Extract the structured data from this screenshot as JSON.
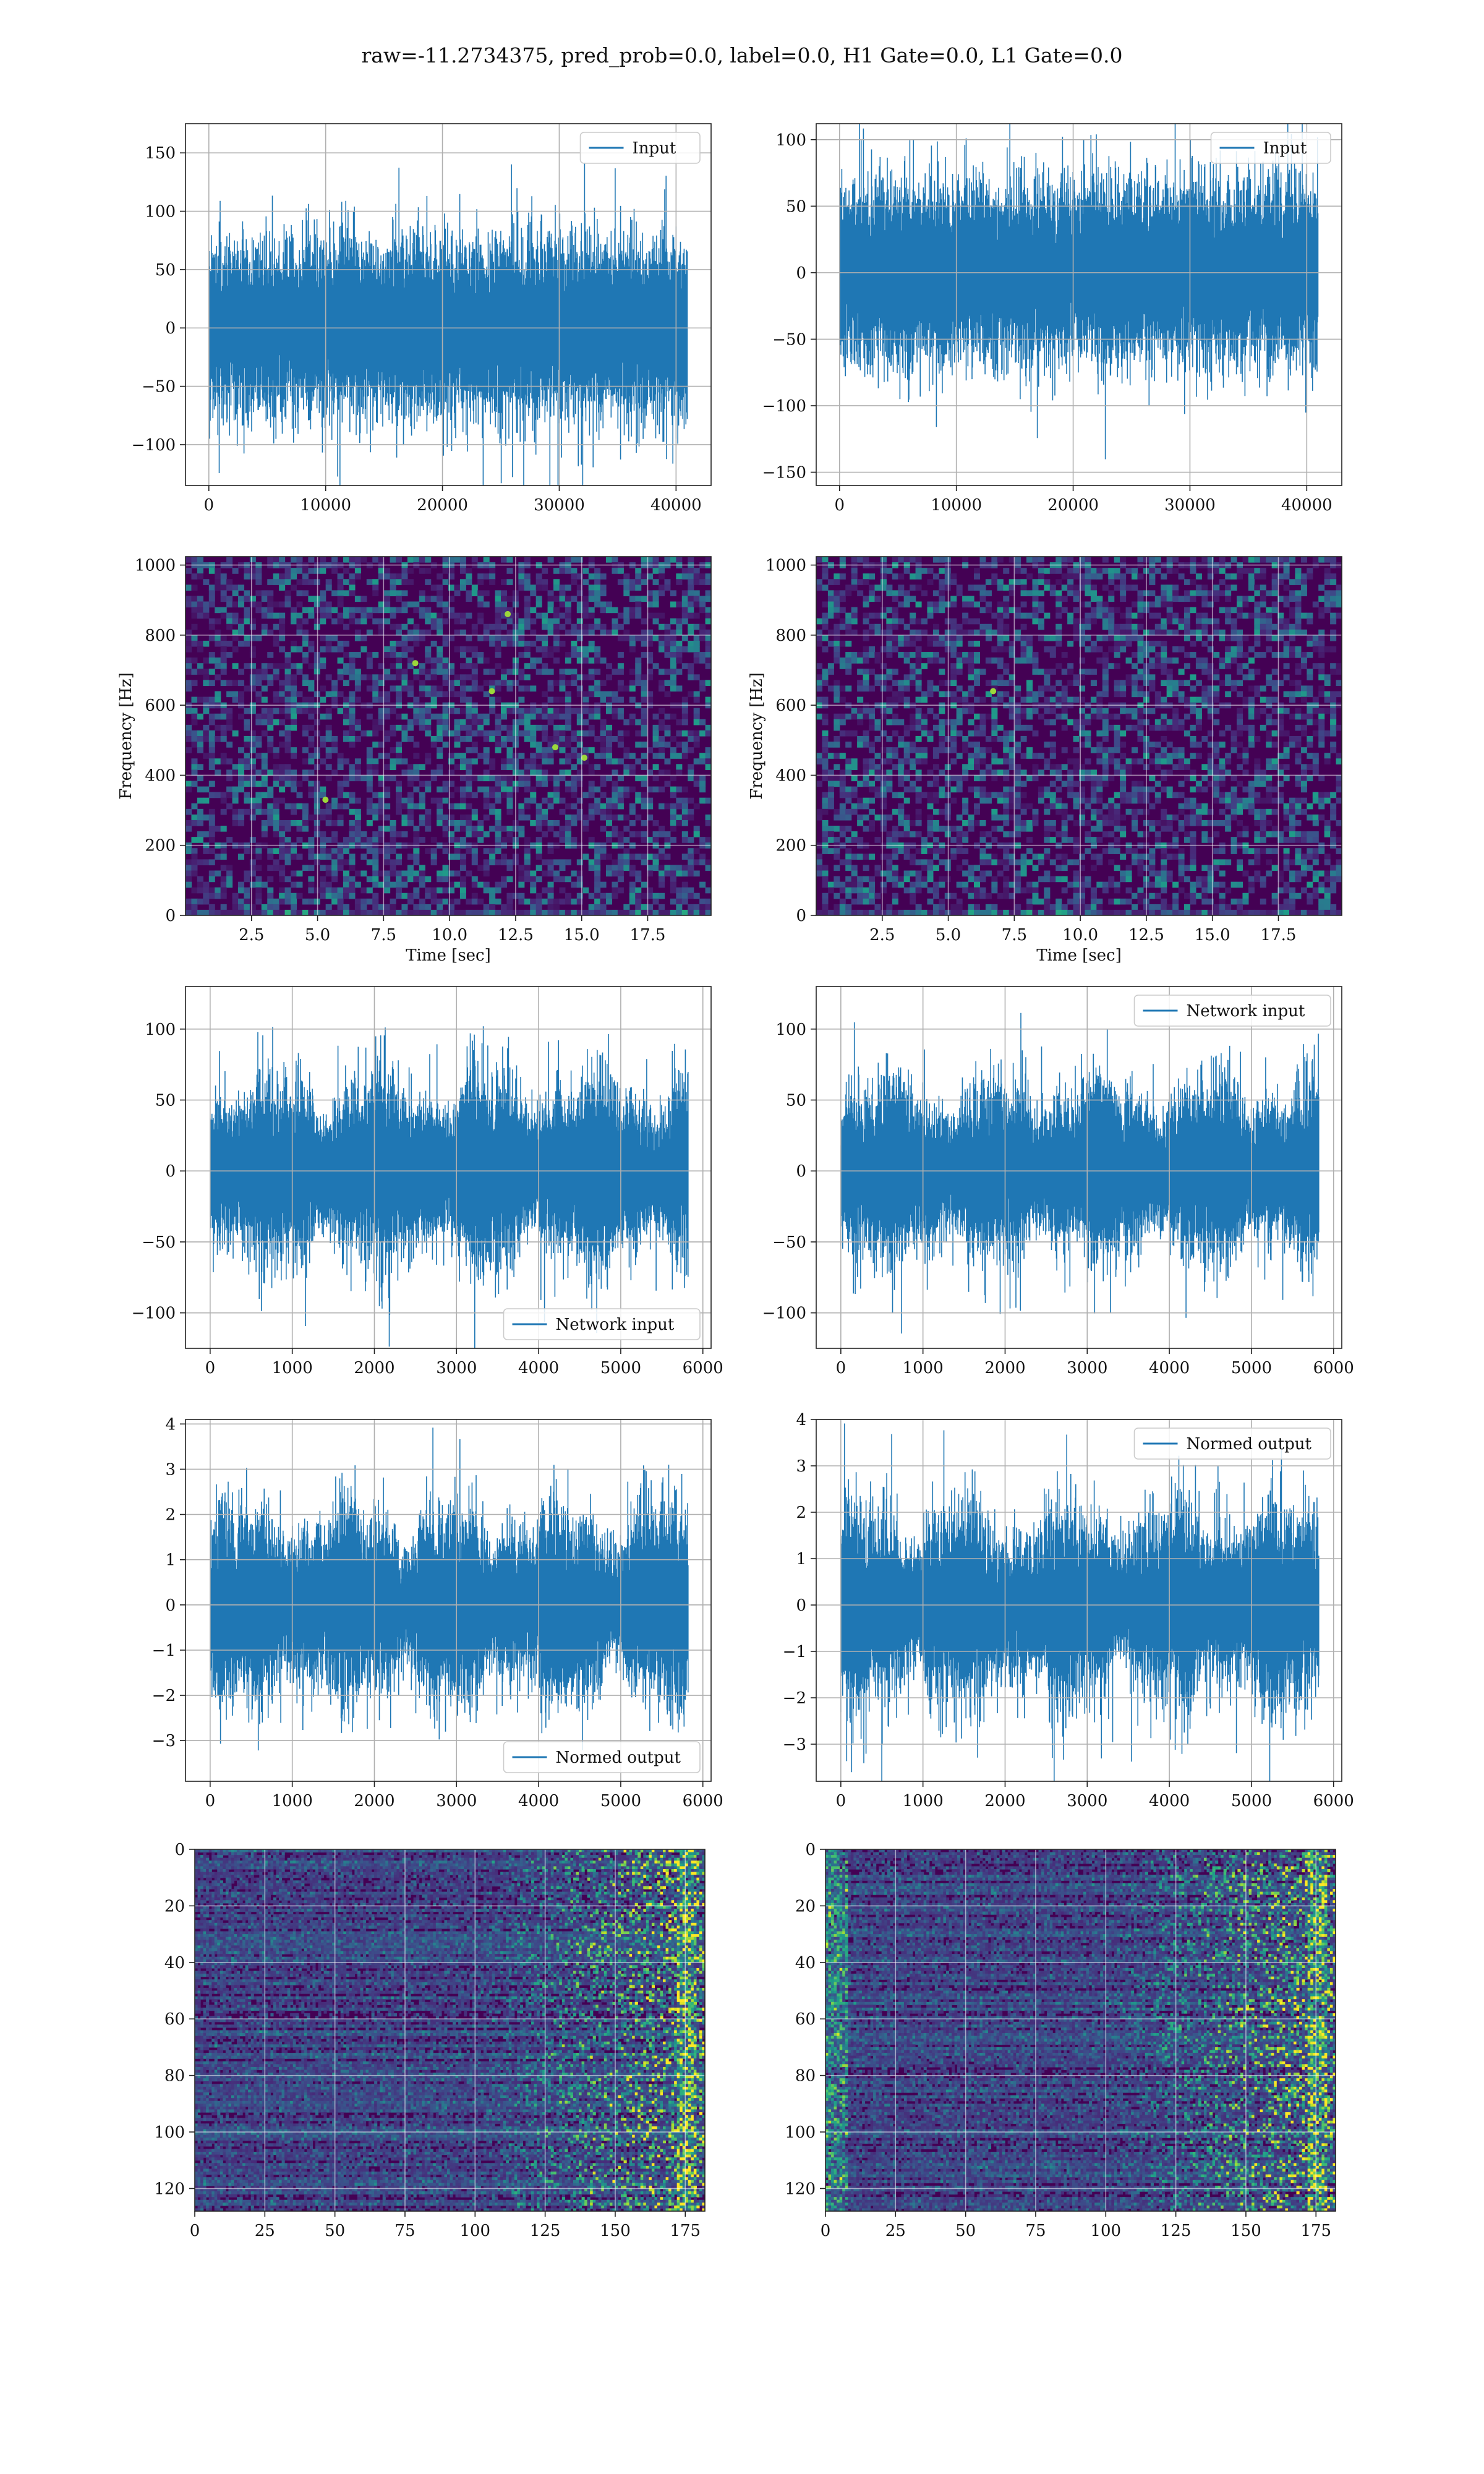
{
  "figure": {
    "suptitle": "raw=-11.2734375, pred_prob=0.0, label=0.0, H1 Gate=0.0, L1 Gate=0.0",
    "line_color": "#1f77b4"
  },
  "chart_data": [
    {
      "id": "h1-input",
      "type": "line",
      "series": [
        {
          "name": "Input",
          "n": 40960,
          "amp": 33,
          "envelope": "flat"
        }
      ],
      "legend": "top-right",
      "xlim": [
        -2000,
        43000
      ],
      "ylim": [
        -135,
        175
      ],
      "xticks": [
        0,
        10000,
        20000,
        30000,
        40000
      ],
      "xtick_labels": [
        "0",
        "10000",
        "20000",
        "30000",
        "40000"
      ],
      "yticks": [
        -100,
        -50,
        0,
        50,
        100,
        150
      ],
      "ytick_labels": [
        "−100",
        "−50",
        "0",
        "50",
        "100",
        "150"
      ],
      "grid": true
    },
    {
      "id": "l1-input",
      "type": "line",
      "series": [
        {
          "name": "Input",
          "n": 40960,
          "amp": 30,
          "envelope": "flat"
        }
      ],
      "legend": "top-right",
      "xlim": [
        -2000,
        43000
      ],
      "ylim": [
        -160,
        112
      ],
      "xticks": [
        0,
        10000,
        20000,
        30000,
        40000
      ],
      "xtick_labels": [
        "0",
        "10000",
        "20000",
        "30000",
        "40000"
      ],
      "yticks": [
        -150,
        -100,
        -50,
        0,
        50,
        100
      ],
      "ytick_labels": [
        "−150",
        "−100",
        "−50",
        "0",
        "50",
        "100"
      ],
      "grid": true
    },
    {
      "id": "h1-spectrogram",
      "type": "heatmap",
      "xlabel": "Time [sec]",
      "ylabel": "Frequency [Hz]",
      "xlim": [
        0,
        19.9
      ],
      "ylim": [
        0,
        1024
      ],
      "xticks": [
        2.5,
        5,
        7.5,
        10,
        12.5,
        15,
        17.5
      ],
      "xtick_labels": [
        "2.5",
        "5.0",
        "7.5",
        "10.0",
        "12.5",
        "15.0",
        "17.5"
      ],
      "yticks": [
        0,
        200,
        400,
        600,
        800,
        1000
      ],
      "ytick_labels": [
        "0",
        "200",
        "400",
        "600",
        "800",
        "1000"
      ],
      "grid": true,
      "colormap": "viridis"
    },
    {
      "id": "l1-spectrogram",
      "type": "heatmap",
      "xlabel": "Time [sec]",
      "ylabel": "Frequency [Hz]",
      "xlim": [
        0,
        19.9
      ],
      "ylim": [
        0,
        1024
      ],
      "xticks": [
        2.5,
        5,
        7.5,
        10,
        12.5,
        15,
        17.5
      ],
      "xtick_labels": [
        "2.5",
        "5.0",
        "7.5",
        "10.0",
        "12.5",
        "15.0",
        "17.5"
      ],
      "yticks": [
        0,
        200,
        400,
        600,
        800,
        1000
      ],
      "ytick_labels": [
        "0",
        "200",
        "400",
        "600",
        "800",
        "1000"
      ],
      "grid": true,
      "colormap": "viridis"
    },
    {
      "id": "h1-network-input",
      "type": "line",
      "series": [
        {
          "name": "Network input",
          "n": 5820,
          "amp": 25,
          "envelope": "modulated"
        }
      ],
      "legend": "bottom-right",
      "xlim": [
        -300,
        6100
      ],
      "ylim": [
        -125,
        130
      ],
      "xticks": [
        0,
        1000,
        2000,
        3000,
        4000,
        5000,
        6000
      ],
      "xtick_labels": [
        "0",
        "1000",
        "2000",
        "3000",
        "4000",
        "5000",
        "6000"
      ],
      "yticks": [
        -100,
        -50,
        0,
        50,
        100
      ],
      "ytick_labels": [
        "−100",
        "−50",
        "0",
        "50",
        "100"
      ],
      "grid": true
    },
    {
      "id": "l1-network-input",
      "type": "line",
      "series": [
        {
          "name": "Network input",
          "n": 5820,
          "amp": 24,
          "envelope": "modulated"
        }
      ],
      "legend": "top-right",
      "xlim": [
        -300,
        6100
      ],
      "ylim": [
        -125,
        130
      ],
      "xticks": [
        0,
        1000,
        2000,
        3000,
        4000,
        5000,
        6000
      ],
      "xtick_labels": [
        "0",
        "1000",
        "2000",
        "3000",
        "4000",
        "5000",
        "6000"
      ],
      "yticks": [
        -100,
        -50,
        0,
        50,
        100
      ],
      "ytick_labels": [
        "−100",
        "−50",
        "0",
        "50",
        "100"
      ],
      "grid": true
    },
    {
      "id": "h1-normed-output",
      "type": "line",
      "series": [
        {
          "name": "Normed output",
          "n": 5820,
          "amp": 0.82,
          "envelope": "modulated"
        }
      ],
      "legend": "bottom-right",
      "xlim": [
        -300,
        6100
      ],
      "ylim": [
        -3.9,
        4.1
      ],
      "xticks": [
        0,
        1000,
        2000,
        3000,
        4000,
        5000,
        6000
      ],
      "xtick_labels": [
        "0",
        "1000",
        "2000",
        "3000",
        "4000",
        "5000",
        "6000"
      ],
      "yticks": [
        -3,
        -2,
        -1,
        0,
        1,
        2,
        3,
        4
      ],
      "ytick_labels": [
        "−3",
        "−2",
        "−1",
        "0",
        "1",
        "2",
        "3",
        "4"
      ],
      "grid": true
    },
    {
      "id": "l1-normed-output",
      "type": "line",
      "series": [
        {
          "name": "Normed output",
          "n": 5820,
          "amp": 0.8,
          "envelope": "modulated"
        }
      ],
      "legend": "top-right",
      "xlim": [
        -300,
        6100
      ],
      "ylim": [
        -3.8,
        4.0
      ],
      "xticks": [
        0,
        1000,
        2000,
        3000,
        4000,
        5000,
        6000
      ],
      "xtick_labels": [
        "0",
        "1000",
        "2000",
        "3000",
        "4000",
        "5000",
        "6000"
      ],
      "yticks": [
        -3,
        -2,
        -1,
        0,
        1,
        2,
        3,
        4
      ],
      "ytick_labels": [
        "−3",
        "−2",
        "−1",
        "0",
        "1",
        "2",
        "3",
        "4"
      ],
      "grid": true
    },
    {
      "id": "h1-feature-map",
      "type": "heatmap",
      "xlim": [
        0,
        182
      ],
      "ylim": [
        128,
        0
      ],
      "xticks": [
        0,
        25,
        50,
        75,
        100,
        125,
        150,
        175
      ],
      "xtick_labels": [
        "0",
        "25",
        "50",
        "75",
        "100",
        "125",
        "150",
        "175"
      ],
      "yticks": [
        0,
        20,
        40,
        60,
        80,
        100,
        120
      ],
      "ytick_labels": [
        "0",
        "20",
        "40",
        "60",
        "80",
        "100",
        "120"
      ],
      "grid": true,
      "colormap": "viridis"
    },
    {
      "id": "l1-feature-map",
      "type": "heatmap",
      "xlim": [
        0,
        182
      ],
      "ylim": [
        128,
        0
      ],
      "xticks": [
        0,
        25,
        50,
        75,
        100,
        125,
        150,
        175
      ],
      "xtick_labels": [
        "0",
        "25",
        "50",
        "75",
        "100",
        "125",
        "150",
        "175"
      ],
      "yticks": [
        0,
        20,
        40,
        60,
        80,
        100,
        120
      ],
      "ytick_labels": [
        "0",
        "20",
        "40",
        "60",
        "80",
        "100",
        "120"
      ],
      "grid": true,
      "colormap": "viridis"
    }
  ]
}
